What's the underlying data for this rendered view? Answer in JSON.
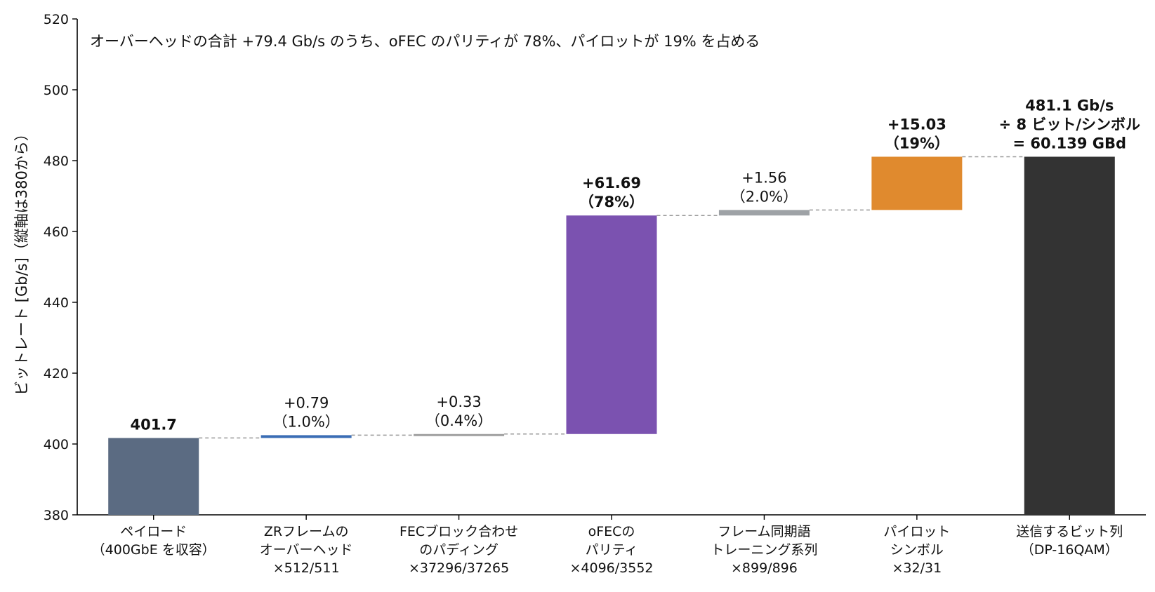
{
  "chart_data": {
    "type": "bar",
    "subtype": "waterfall",
    "annotation": "オーバーヘッドの合計 +79.4 Gb/s のうち、oFEC のパリティが 78%、パイロットが 19% を占める",
    "ylabel": "ビットレート [Gb/s]（縦軸は380から）",
    "xlabel": "",
    "ylim": [
      380,
      520
    ],
    "yticks": [
      380,
      400,
      420,
      440,
      460,
      480,
      500,
      520
    ],
    "grid": false,
    "connectors": "dashed",
    "categories": [
      [
        "ペイロード",
        "（400GbE を収容）"
      ],
      [
        "ZRフレームの",
        "オーバーヘッド",
        "×512/511"
      ],
      [
        "FECブロック合わせ",
        "のパディング",
        "×37296/37265"
      ],
      [
        "oFECの",
        "パリティ",
        "×4096/3552"
      ],
      [
        "フレーム同期語",
        "トレーニング系列",
        "×899/896"
      ],
      [
        "パイロット",
        "シンボル",
        "×32/31"
      ],
      [
        "送信するビット列",
        "（DP-16QAM）"
      ]
    ],
    "bars": [
      {
        "kind": "total",
        "start": 380,
        "end": 401.7,
        "color": "#5b6b82",
        "label": [
          "401.7"
        ],
        "bold": true
      },
      {
        "kind": "delta",
        "start": 401.7,
        "end": 402.49,
        "value": 0.79,
        "color": "#3a6db5",
        "label": [
          "+0.79",
          "（1.0%）"
        ],
        "bold": false
      },
      {
        "kind": "delta",
        "start": 402.49,
        "end": 402.82,
        "value": 0.33,
        "color": "#a0a0a0",
        "label": [
          "+0.33",
          "（0.4%）"
        ],
        "bold": false
      },
      {
        "kind": "delta",
        "start": 402.82,
        "end": 464.51,
        "value": 61.69,
        "color": "#7b52b0",
        "label": [
          "+61.69",
          "（78%）"
        ],
        "bold": true
      },
      {
        "kind": "delta",
        "start": 464.51,
        "end": 466.07,
        "value": 1.56,
        "color": "#9ea2a6",
        "label": [
          "+1.56",
          "（2.0%）"
        ],
        "bold": false
      },
      {
        "kind": "delta",
        "start": 466.07,
        "end": 481.1,
        "value": 15.03,
        "color": "#e08a2e",
        "label": [
          "+15.03",
          "（19%）"
        ],
        "bold": true
      },
      {
        "kind": "total",
        "start": 380,
        "end": 481.1,
        "color": "#333333",
        "label": [
          "481.1 Gb/s",
          "÷ 8 ビット/シンボル",
          "= 60.139 GBd"
        ],
        "bold": true
      }
    ]
  }
}
